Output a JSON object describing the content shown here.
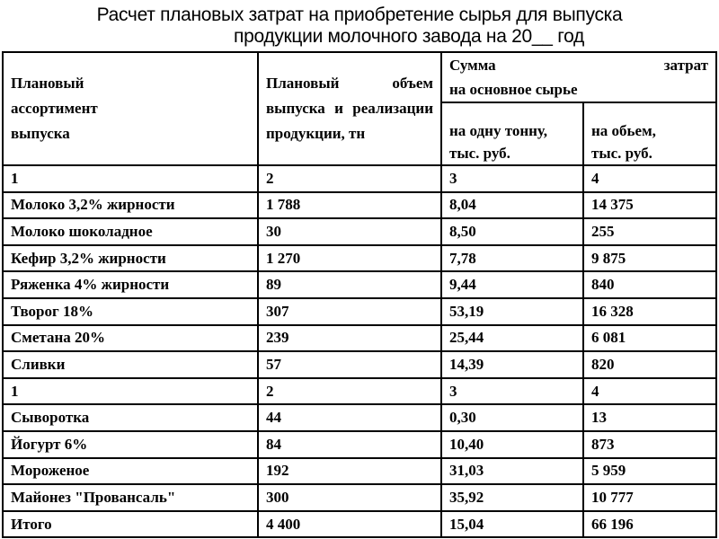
{
  "title": {
    "line1": "Расчет плановых затрат на приобретение сырья для выпуска",
    "line2": "продукции молочного завода на 20__ год"
  },
  "table": {
    "header": {
      "col1_line1": "Плановый",
      "col1_line2": "ассортимент",
      "col1_line3": "выпуска",
      "col2_line1_word1": "Плановый",
      "col2_line1_word2": "объем",
      "col2_line2_word1": "выпуска",
      "col2_line2_word2": "и",
      "col2_line2_word3": "реализации",
      "col2_line3": "продукции, тн",
      "cost_group_word1": "Сумма",
      "cost_group_word2": "затрат",
      "cost_group_line2": "на основное сырье",
      "col3_line1": "на одну тонну,",
      "col3_line2": "тыс. руб.",
      "col4_line1": "на обьем,",
      "col4_line2": "тыс. руб."
    },
    "rows": [
      [
        "1",
        "2",
        "3",
        "4"
      ],
      [
        "Молоко 3,2% жирности",
        "1 788",
        "8,04",
        "14 375"
      ],
      [
        "Молоко шоколадное",
        "30",
        "8,50",
        "255"
      ],
      [
        "Кефир 3,2% жирности",
        "1 270",
        "7,78",
        "9 875"
      ],
      [
        "Ряженка 4% жирности",
        "89",
        "9,44",
        "840"
      ],
      [
        "Творог 18%",
        "307",
        "53,19",
        "16 328"
      ],
      [
        "Сметана 20%",
        "239",
        "25,44",
        "6 081"
      ],
      [
        "Сливки",
        "57",
        "14,39",
        "820"
      ],
      [
        "1",
        "2",
        "3",
        "4"
      ],
      [
        "Сыворотка",
        "44",
        "0,30",
        "13"
      ],
      [
        "Йогурт 6%",
        "84",
        "10,40",
        "873"
      ],
      [
        "Мороженое",
        "192",
        "31,03",
        "5 959"
      ],
      [
        "Майонез \"Провансаль\"",
        "300",
        "35,92",
        "10 777"
      ],
      [
        "Итого",
        "4 400",
        "15,04",
        "66 196"
      ]
    ]
  }
}
